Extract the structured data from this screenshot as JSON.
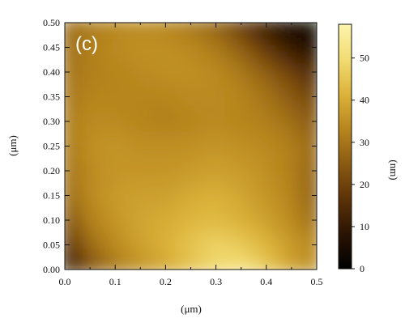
{
  "chart_data": {
    "type": "heatmap",
    "panel_label": "(c)",
    "xlabel": "(μm)",
    "ylabel": "(μm)",
    "xlim": [
      0.0,
      0.5
    ],
    "ylim": [
      0.0,
      0.5
    ],
    "x_ticks": [
      0.0,
      0.1,
      0.2,
      0.3,
      0.4,
      0.5
    ],
    "x_tick_labels": [
      "0.0",
      "0.1",
      "0.2",
      "0.3",
      "0.4",
      "0.5"
    ],
    "y_ticks": [
      0.0,
      0.05,
      0.1,
      0.15,
      0.2,
      0.25,
      0.3,
      0.35,
      0.4,
      0.45,
      0.5
    ],
    "y_tick_labels": [
      "0.00",
      "0.05",
      "0.10",
      "0.15",
      "0.20",
      "0.25",
      "0.30",
      "0.35",
      "0.40",
      "0.45",
      "0.50"
    ],
    "colorbar": {
      "label": "(nm)",
      "range": [
        0,
        58
      ],
      "ticks": [
        0,
        10,
        20,
        30,
        40,
        50
      ],
      "tick_labels": [
        "0",
        "10",
        "20",
        "30",
        "40",
        "50"
      ],
      "colors": [
        "#000000",
        "#2a1403",
        "#5c3208",
        "#8a5a12",
        "#b7861e",
        "#dcb33a",
        "#f2dc72",
        "#fdf5ae"
      ]
    },
    "grid": {
      "x": [
        0.0,
        0.05,
        0.1,
        0.15,
        0.2,
        0.25,
        0.3,
        0.35,
        0.4,
        0.45,
        0.5
      ],
      "y": [
        0.0,
        0.05,
        0.1,
        0.15,
        0.2,
        0.25,
        0.3,
        0.35,
        0.4,
        0.45,
        0.5
      ],
      "z": [
        [
          6,
          22,
          30,
          35,
          39,
          44,
          49,
          52,
          46,
          38,
          34
        ],
        [
          15,
          28,
          34,
          38,
          41,
          45,
          48,
          46,
          42,
          37,
          33
        ],
        [
          22,
          32,
          36,
          39,
          40,
          42,
          43,
          41,
          38,
          34,
          28
        ],
        [
          27,
          34,
          37,
          38,
          38,
          40,
          41,
          39,
          36,
          33,
          25
        ],
        [
          29,
          34,
          36,
          36,
          36,
          37,
          38,
          37,
          35,
          32,
          26
        ],
        [
          30,
          35,
          36,
          35,
          35,
          35,
          36,
          35,
          34,
          32,
          27
        ],
        [
          31,
          34,
          34,
          33,
          32,
          33,
          34,
          33,
          32,
          29,
          24
        ],
        [
          30,
          33,
          33,
          33,
          33,
          34,
          34,
          33,
          30,
          25,
          20
        ],
        [
          29,
          32,
          33,
          34,
          35,
          35,
          34,
          31,
          26,
          20,
          14
        ],
        [
          28,
          32,
          34,
          35,
          35,
          34,
          31,
          26,
          18,
          10,
          6
        ],
        [
          27,
          31,
          33,
          34,
          33,
          30,
          26,
          18,
          9,
          4,
          3
        ]
      ]
    }
  }
}
